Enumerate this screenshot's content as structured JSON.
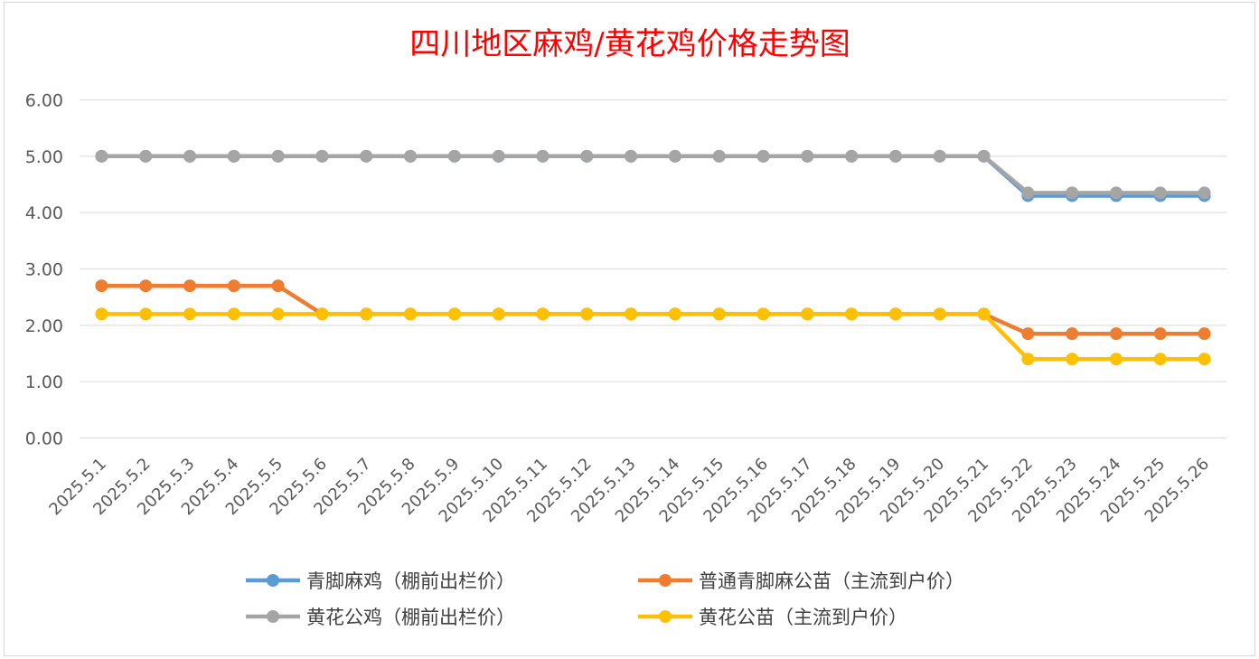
{
  "chart_data": {
    "type": "line",
    "title": "四川地区麻鸡/黄花鸡价格走势图",
    "xlabel": "",
    "ylabel": "",
    "ylim": [
      0,
      6
    ],
    "y_ticks": [
      "0.00",
      "1.00",
      "2.00",
      "3.00",
      "4.00",
      "5.00",
      "6.00"
    ],
    "grid": true,
    "legend_position": "bottom",
    "categories": [
      "2025.5.1",
      "2025.5.2",
      "2025.5.3",
      "2025.5.4",
      "2025.5.5",
      "2025.5.6",
      "2025.5.7",
      "2025.5.8",
      "2025.5.9",
      "2025.5.10",
      "2025.5.11",
      "2025.5.12",
      "2025.5.13",
      "2025.5.14",
      "2025.5.15",
      "2025.5.16",
      "2025.5.17",
      "2025.5.18",
      "2025.5.19",
      "2025.5.20",
      "2025.5.21",
      "2025.5.22",
      "2025.5.23",
      "2025.5.24",
      "2025.5.25",
      "2025.5.26"
    ],
    "series": [
      {
        "name": "青脚麻鸡（棚前出栏价）",
        "color": "#5b9bd5",
        "values": [
          5,
          5,
          5,
          5,
          5,
          5,
          5,
          5,
          5,
          5,
          5,
          5,
          5,
          5,
          5,
          5,
          5,
          5,
          5,
          5,
          5,
          4.3,
          4.3,
          4.3,
          4.3,
          4.3
        ]
      },
      {
        "name": "普通青脚麻公苗（主流到户价）",
        "color": "#ed7d31",
        "values": [
          2.7,
          2.7,
          2.7,
          2.7,
          2.7,
          2.2,
          2.2,
          2.2,
          2.2,
          2.2,
          2.2,
          2.2,
          2.2,
          2.2,
          2.2,
          2.2,
          2.2,
          2.2,
          2.2,
          2.2,
          2.2,
          1.85,
          1.85,
          1.85,
          1.85,
          1.85
        ]
      },
      {
        "name": "黄花公鸡（棚前出栏价）",
        "color": "#a5a5a5",
        "values": [
          5,
          5,
          5,
          5,
          5,
          5,
          5,
          5,
          5,
          5,
          5,
          5,
          5,
          5,
          5,
          5,
          5,
          5,
          5,
          5,
          5,
          4.35,
          4.35,
          4.35,
          4.35,
          4.35
        ]
      },
      {
        "name": "黄花公苗（主流到户价）",
        "color": "#ffc000",
        "values": [
          2.2,
          2.2,
          2.2,
          2.2,
          2.2,
          2.2,
          2.2,
          2.2,
          2.2,
          2.2,
          2.2,
          2.2,
          2.2,
          2.2,
          2.2,
          2.2,
          2.2,
          2.2,
          2.2,
          2.2,
          2.2,
          1.4,
          1.4,
          1.4,
          1.4,
          1.4
        ]
      }
    ]
  }
}
